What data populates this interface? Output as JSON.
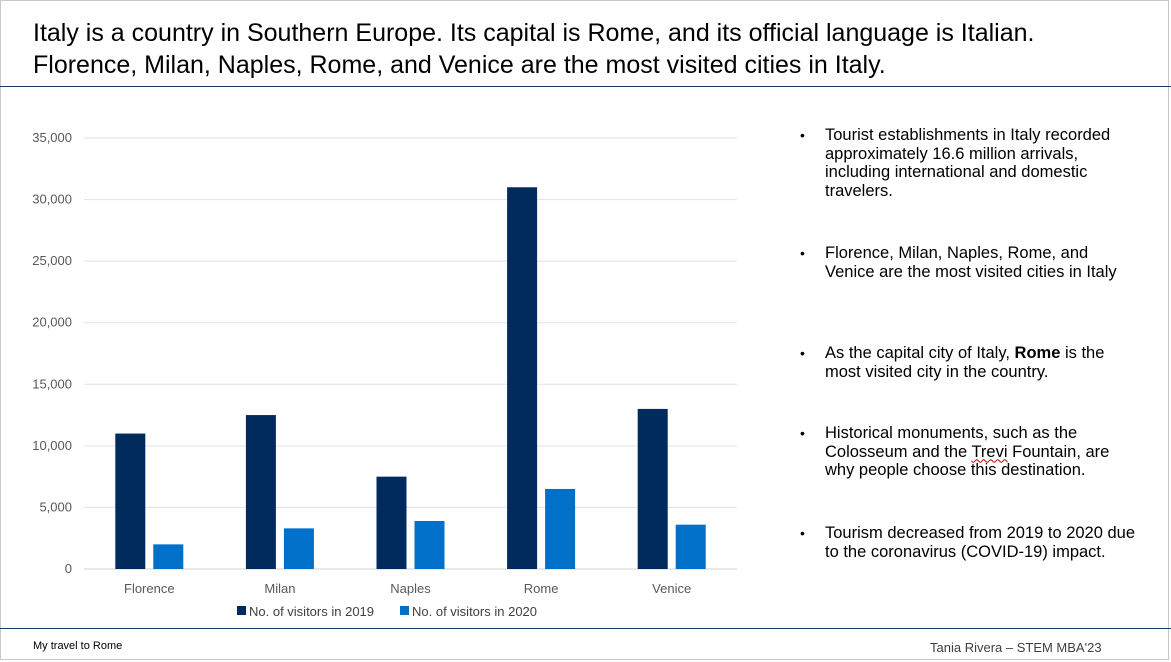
{
  "slide": {
    "title_line1": "Italy is a country in Southern Europe. Its capital is Rome, and its official language is Italian.",
    "title_line2": "Florence, Milan, Naples, Rome, and Venice are the most visited cities in Italy.",
    "footer_left": "My travel to Rome",
    "footer_right": "Tania Rivera – STEM MBA'23"
  },
  "bullets": {
    "b1": "Tourist establishments in Italy recorded approximately 16.6 million arrivals, including international and domestic travelers.",
    "b2": "Florence, Milan, Naples, Rome, and Venice are the most visited cities in Italy",
    "b3_before": "As the capital city of Italy, ",
    "b3_bold": "Rome",
    "b3_after": " is the most visited city in the country.",
    "b4_before": " Historical monuments, such as the Colosseum and the ",
    "b4_squiggle": "Trevi",
    "b4_after": " Fountain, are why people choose this destination.",
    "b5": "Tourism decreased from 2019 to 2020 due to the coronavirus (COVID-19) impact.",
    "marker": "•"
  },
  "chart_data": {
    "type": "bar",
    "categories": [
      "Florence",
      "Milan",
      "Naples",
      "Rome",
      "Venice"
    ],
    "series": [
      {
        "name": "No. of visitors in 2019",
        "values": [
          11000,
          12500,
          7500,
          31000,
          13000
        ],
        "color": "#002b5c"
      },
      {
        "name": "No. of visitors in 2020",
        "values": [
          2000,
          3300,
          3900,
          6500,
          3600
        ],
        "color": "#0070c8"
      }
    ],
    "ylim": [
      0,
      35000
    ],
    "yticks": [
      0,
      5000,
      10000,
      15000,
      20000,
      25000,
      30000,
      35000
    ],
    "ytick_labels": [
      "0",
      "5,000",
      "10,000",
      "15,000",
      "20,000",
      "25,000",
      "30,000",
      "35,000"
    ],
    "grid": true,
    "legend_position": "bottom",
    "title": "",
    "xlabel": "",
    "ylabel": ""
  }
}
